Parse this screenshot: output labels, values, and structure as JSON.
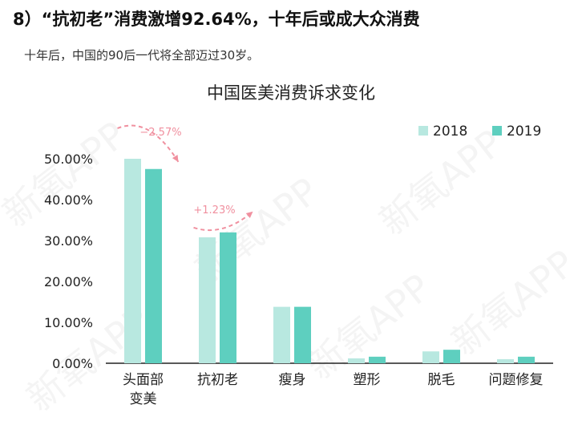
{
  "header": {
    "title": "8）“抗初老”消费激增92.64%，十年后或成大众消费",
    "subtitle": "十年后，中国的90后一代将全部迈过30岁。"
  },
  "chart_data": {
    "type": "bar",
    "title": "中国医美消费诉求变化",
    "categories": [
      [
        "头面部",
        "变美"
      ],
      [
        "抗初老"
      ],
      [
        "瘦身"
      ],
      [
        "塑形"
      ],
      [
        "脱毛"
      ],
      [
        "问题修复"
      ]
    ],
    "series": [
      {
        "name": "2018",
        "values": [
          50.0,
          30.8,
          13.8,
          1.2,
          2.9,
          1.0
        ],
        "color": "#b8e8e0"
      },
      {
        "name": "2019",
        "values": [
          47.5,
          32.0,
          13.8,
          1.6,
          3.3,
          1.6
        ],
        "color": "#5ecfbf"
      }
    ],
    "yticks": [
      "0.00%",
      "10.00%",
      "20.00%",
      "30.00%",
      "40.00%",
      "50.00%"
    ],
    "ylim": [
      0,
      50
    ],
    "legend_position": "top-right",
    "annotations": [
      {
        "category_index": 0,
        "text": "−2.57%",
        "direction": "down"
      },
      {
        "category_index": 1,
        "text": "+1.23%",
        "direction": "up"
      }
    ],
    "annotation_color": "#f0909f",
    "axis_color": "#222222"
  },
  "watermark": "新氧APP"
}
